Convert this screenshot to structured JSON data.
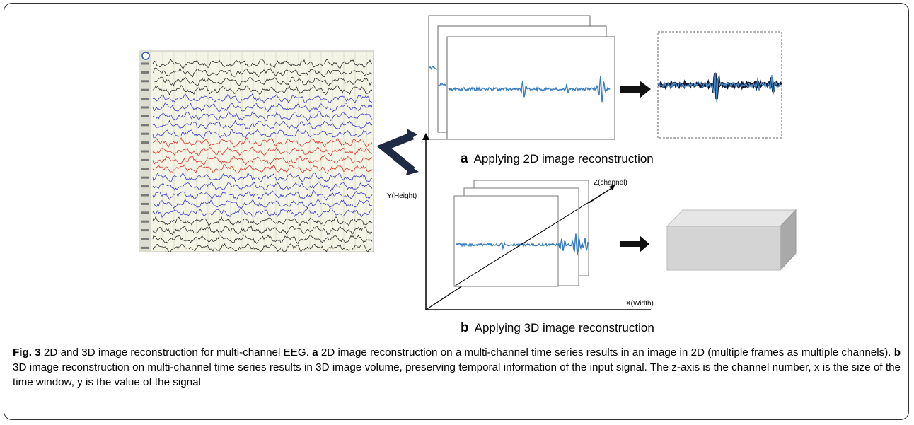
{
  "figure": {
    "label_a_letter": "a",
    "label_a_text": "Applying  2D image reconstruction",
    "label_b_letter": "b",
    "label_b_text": "Applying  3D image reconstruction",
    "axis_y": "Y(Height)",
    "axis_z": "Z(channel)",
    "axis_x": "X(Width)",
    "eeg_channel_count": 22,
    "colors": {
      "black_trace": "#2b2b2b",
      "blue_trace": "#3a3ad6",
      "red_trace": "#e0332b",
      "signal": "#3a7fc1",
      "panel_bg": "#f4f4e6",
      "arrow": "#1f2a44",
      "box": "#d6d6d6"
    }
  },
  "caption": {
    "fig_label": "Fig. 3",
    "title": " 2D and 3D image reconstruction for multi-channel EEG. ",
    "a_letter": "a",
    "a_text": " 2D image reconstruction on a multi-channel time series results in an image in 2D (multiple frames as multiple channels). ",
    "b_letter": "b",
    "b_text": " 3D image reconstruction on multi-channel time series results in 3D image volume, preserving temporal information of the input signal. The z-axis is the channel number, x is the size of the time window, y is the value of the signal"
  }
}
